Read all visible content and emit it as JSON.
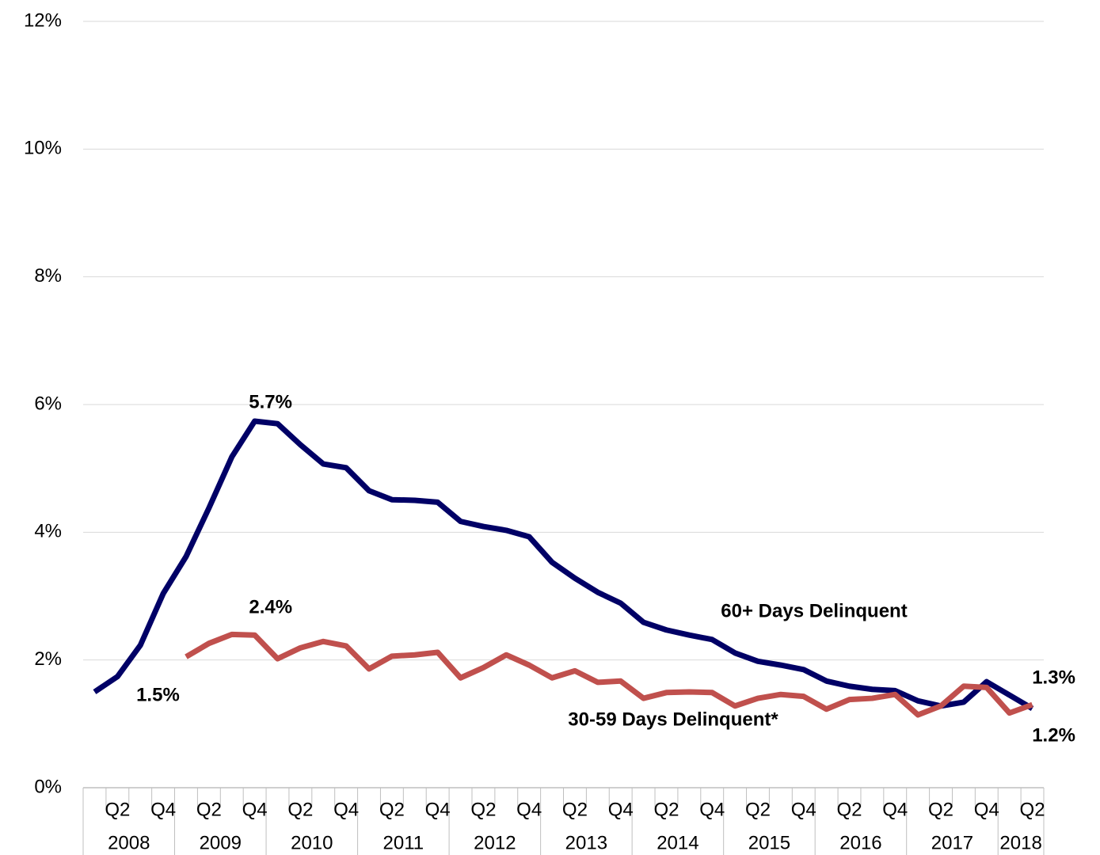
{
  "chart_data": {
    "type": "line",
    "categories": [
      null,
      "Q2",
      null,
      "Q4",
      null,
      "Q2",
      null,
      "Q4",
      null,
      "Q2",
      null,
      "Q4",
      null,
      "Q2",
      null,
      "Q4",
      null,
      "Q2",
      null,
      "Q4",
      null,
      "Q2",
      null,
      "Q4",
      null,
      "Q2",
      null,
      "Q4",
      null,
      "Q2",
      null,
      "Q4",
      null,
      "Q2",
      null,
      "Q4",
      null,
      "Q2",
      null,
      "Q4",
      null,
      "Q2"
    ],
    "years": [
      "2008",
      "2009",
      "2010",
      "2011",
      "2012",
      "2013",
      "2014",
      "2015",
      "2016",
      "2017",
      "2018"
    ],
    "series": [
      {
        "name": "60+ Days Delinquent",
        "color": "#000066",
        "values": [
          1.5,
          1.74,
          2.23,
          3.04,
          3.62,
          4.38,
          5.18,
          5.74,
          5.7,
          5.37,
          5.07,
          5.01,
          4.65,
          4.51,
          4.5,
          4.47,
          4.17,
          4.09,
          4.03,
          3.93,
          3.53,
          3.28,
          3.06,
          2.89,
          2.59,
          2.47,
          2.39,
          2.32,
          2.11,
          1.98,
          1.92,
          1.85,
          1.67,
          1.59,
          1.54,
          1.52,
          1.36,
          1.28,
          1.34,
          1.66,
          1.45,
          1.24
        ],
        "value_labels": [
          "1.5%",
          null,
          null,
          null,
          null,
          null,
          null,
          "5.7%",
          null,
          null,
          null,
          null,
          null,
          null,
          null,
          null,
          null,
          null,
          null,
          null,
          null,
          null,
          null,
          null,
          null,
          null,
          null,
          null,
          null,
          null,
          null,
          null,
          null,
          null,
          null,
          null,
          null,
          null,
          null,
          null,
          null,
          "1.2%"
        ]
      },
      {
        "name": "30-59 Days Delinquent*",
        "color": "#c0504d",
        "values": [
          null,
          null,
          null,
          null,
          2.05,
          2.26,
          2.4,
          2.39,
          2.02,
          2.19,
          2.29,
          2.22,
          1.86,
          2.06,
          2.08,
          2.12,
          1.72,
          1.88,
          2.08,
          1.92,
          1.72,
          1.83,
          1.65,
          1.67,
          1.4,
          1.49,
          1.5,
          1.49,
          1.28,
          1.4,
          1.46,
          1.43,
          1.23,
          1.38,
          1.4,
          1.46,
          1.14,
          1.28,
          1.59,
          1.57,
          1.17,
          1.3
        ],
        "value_labels": [
          null,
          null,
          null,
          null,
          null,
          null,
          "2.4%",
          null,
          null,
          null,
          null,
          null,
          null,
          null,
          null,
          null,
          null,
          null,
          null,
          null,
          null,
          null,
          null,
          null,
          null,
          null,
          null,
          null,
          null,
          null,
          null,
          null,
          null,
          null,
          null,
          null,
          null,
          null,
          null,
          null,
          null,
          "1.3%"
        ]
      }
    ],
    "ylim": [
      0,
      12
    ],
    "yticks": [
      {
        "value": 0,
        "label": "0%"
      },
      {
        "value": 2,
        "label": "2%"
      },
      {
        "value": 4,
        "label": "4%"
      },
      {
        "value": 6,
        "label": "6%"
      },
      {
        "value": 8,
        "label": "8%"
      },
      {
        "value": 10,
        "label": "10%"
      },
      {
        "value": 12,
        "label": "12%"
      }
    ],
    "grid": true
  }
}
